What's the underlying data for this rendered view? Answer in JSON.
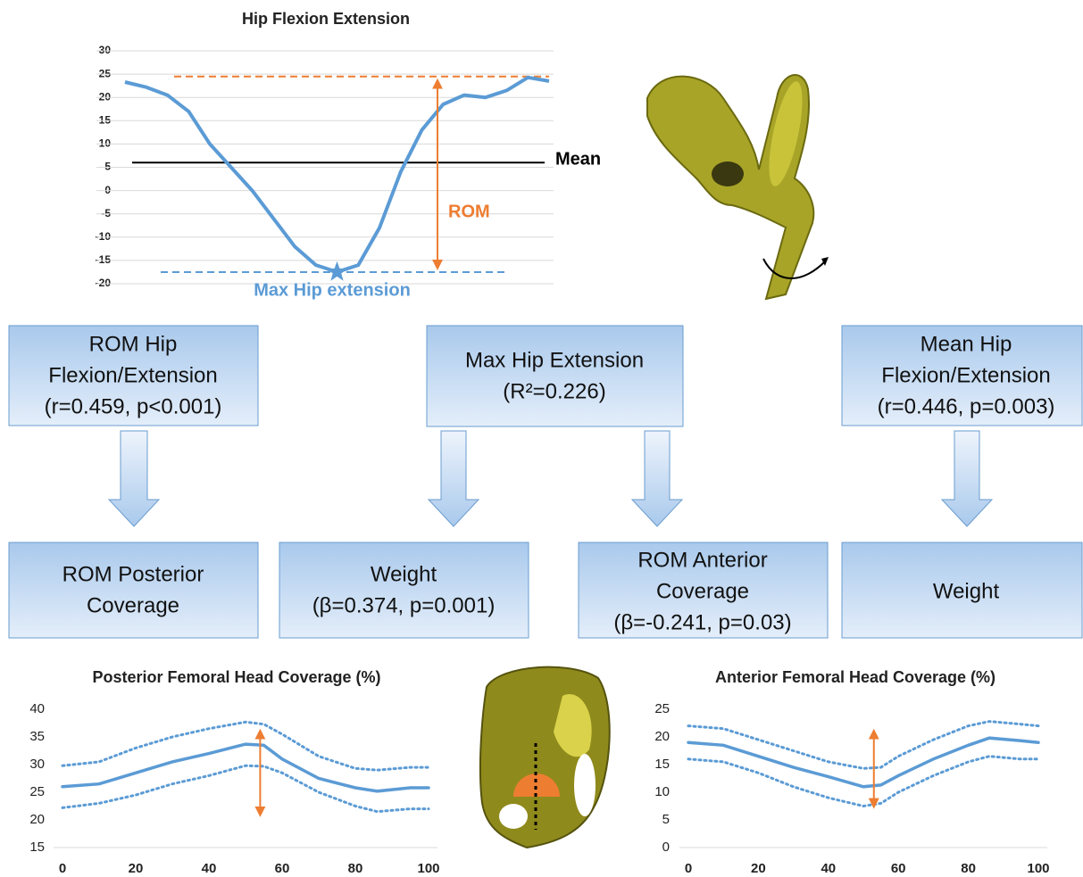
{
  "chart_data": [
    {
      "type": "line",
      "title": "Hip Flexion Extension",
      "color": "#5b9bd5",
      "values": [
        23.3,
        22.2,
        20.5,
        17,
        10,
        5,
        0,
        -6,
        -12,
        -16,
        -17.5,
        -16,
        -8,
        4,
        13,
        18.5,
        20.5,
        20,
        21.5,
        24.3,
        23.5
      ],
      "ylim": [
        -20,
        30
      ],
      "yticks": [
        -20,
        -15,
        -10,
        -5,
        0,
        5,
        10,
        15,
        20,
        25,
        30
      ],
      "grid": true,
      "mean_line": {
        "label": "Mean",
        "value": 6,
        "color": "#000000"
      },
      "reference_lines": [
        {
          "value": 24.5,
          "color": "#ed7d31"
        },
        {
          "value": -17.5,
          "color": "#5b9bd5"
        }
      ],
      "rom": {
        "label": "ROM",
        "from": -17.5,
        "to": 24.5,
        "color": "#ed7d31"
      },
      "min_label": "Max Hip extension"
    },
    {
      "type": "line",
      "title": "Posterior Femoral Head Coverage (%)",
      "x": [
        0,
        10,
        20,
        30,
        40,
        50,
        55,
        60,
        70,
        80,
        86,
        95,
        100
      ],
      "series": [
        {
          "color": "#5b9bd5",
          "style": "solid",
          "values": [
            26,
            26.5,
            28.5,
            30.5,
            32,
            33.7,
            33.5,
            31,
            27.5,
            25.8,
            25.2,
            25.8,
            25.8
          ]
        },
        {
          "color": "#5b9bd5",
          "style": "dotted",
          "values": [
            29.8,
            30.5,
            33,
            35,
            36.5,
            37.7,
            37.3,
            35.5,
            31.5,
            29.3,
            29,
            29.5,
            29.5
          ]
        },
        {
          "color": "#5b9bd5",
          "style": "dotted",
          "values": [
            22.2,
            23,
            24.5,
            26.5,
            28,
            29.8,
            29.7,
            28.5,
            25,
            22.5,
            21.5,
            22,
            22
          ]
        }
      ],
      "xlim": [
        0,
        100
      ],
      "xticks": [
        0,
        20,
        40,
        60,
        80,
        100
      ],
      "ylim": [
        15,
        40
      ],
      "yticks": [
        15,
        20,
        25,
        30,
        35,
        40
      ],
      "arrow": {
        "x": 54,
        "from": 20.5,
        "to": 36.5,
        "color": "#ed7d31"
      }
    },
    {
      "type": "line",
      "title": "Anterior Femoral Head Coverage (%)",
      "x": [
        0,
        10,
        20,
        30,
        40,
        50,
        55,
        60,
        70,
        80,
        86,
        95,
        100
      ],
      "series": [
        {
          "color": "#5b9bd5",
          "style": "solid",
          "values": [
            19,
            18.5,
            16.5,
            14.5,
            12.8,
            11,
            11.3,
            13,
            16,
            18.5,
            19.8,
            19.3,
            19
          ]
        },
        {
          "color": "#5b9bd5",
          "style": "dotted",
          "values": [
            22,
            21.5,
            19.5,
            17.5,
            15.5,
            14.3,
            14.5,
            16.5,
            19.5,
            22,
            22.8,
            22.3,
            22
          ]
        },
        {
          "color": "#5b9bd5",
          "style": "dotted",
          "values": [
            16,
            15.5,
            13.5,
            11,
            9,
            7.5,
            8,
            10,
            13,
            15.5,
            16.5,
            16,
            16
          ]
        }
      ],
      "xlim": [
        0,
        100
      ],
      "xticks": [
        0,
        20,
        40,
        60,
        80,
        100
      ],
      "ylim": [
        0,
        25
      ],
      "yticks": [
        0,
        5,
        10,
        15,
        20,
        25
      ],
      "arrow": {
        "x": 53,
        "from": 7,
        "to": 21.5,
        "color": "#ed7d31"
      }
    }
  ],
  "diagram": {
    "boxes": [
      {
        "lines": [
          "ROM Hip",
          "Flexion/Extension",
          "(r=0.459, p<0.001)"
        ]
      },
      {
        "lines": [
          "Max Hip Extension",
          "(R²=0.226)"
        ]
      },
      {
        "lines": [
          "Mean Hip",
          "Flexion/Extension",
          "(r=0.446, p=0.003)"
        ]
      },
      {
        "lines": [
          "ROM Posterior",
          "Coverage"
        ]
      },
      {
        "lines": [
          "Weight",
          "(β=0.374, p=0.001)"
        ]
      },
      {
        "lines": [
          "ROM Anterior",
          "Coverage",
          "(β=-0.241, p=0.03)"
        ]
      },
      {
        "lines": [
          "Weight"
        ]
      }
    ]
  }
}
